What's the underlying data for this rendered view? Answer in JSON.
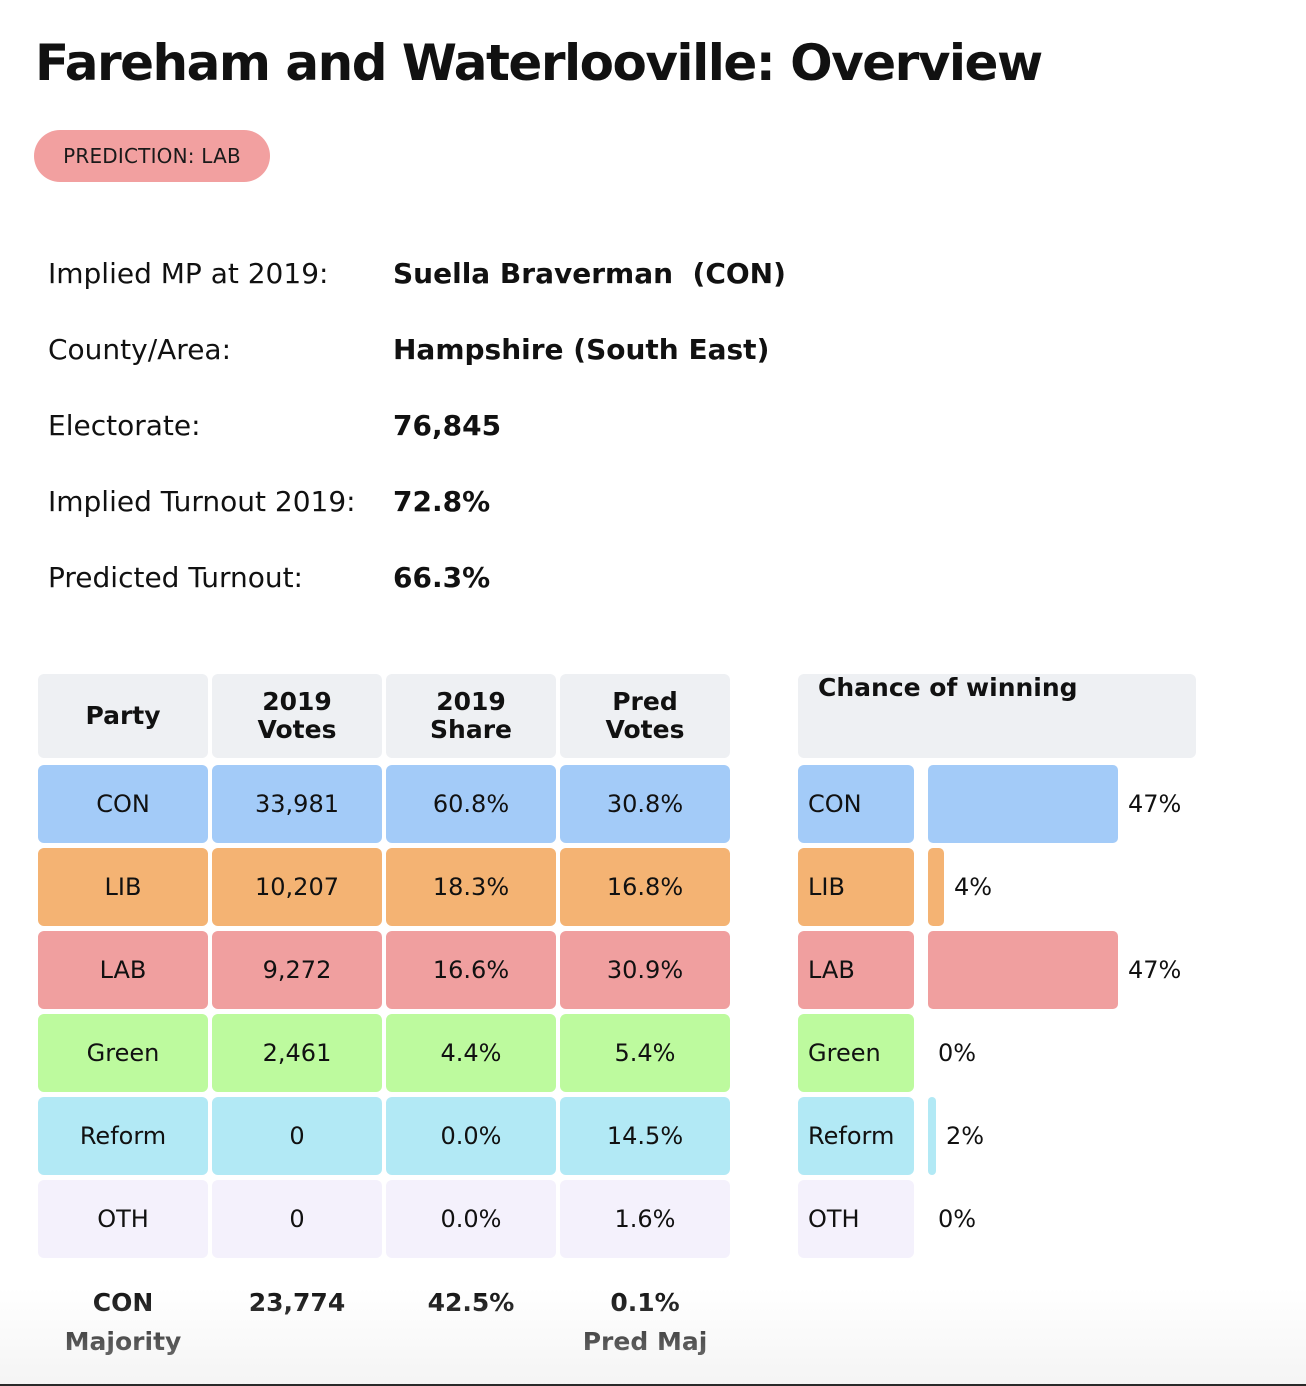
{
  "title": "Fareham and Waterlooville: Overview",
  "prediction_badge": "PREDICTION: LAB",
  "info": [
    {
      "label": "Implied MP at 2019:",
      "value": "Suella Braverman  (CON)"
    },
    {
      "label": "County/Area:",
      "value": "Hampshire (South East)"
    },
    {
      "label": "Electorate:",
      "value": "76,845"
    },
    {
      "label": "Implied Turnout 2019:",
      "value": "72.8%"
    },
    {
      "label": "Predicted Turnout:",
      "value": "66.3%"
    }
  ],
  "results_table": {
    "headers": [
      "Party",
      "2019 Votes",
      "2019 Share",
      "Pred Votes"
    ],
    "rows": [
      {
        "party": "CON",
        "votes_2019": "33,981",
        "share_2019": "60.8%",
        "pred_votes": "30.8%",
        "color": "#a3cbf8"
      },
      {
        "party": "LIB",
        "votes_2019": "10,207",
        "share_2019": "18.3%",
        "pred_votes": "16.8%",
        "color": "#f4b373"
      },
      {
        "party": "LAB",
        "votes_2019": "9,272",
        "share_2019": "16.6%",
        "pred_votes": "30.9%",
        "color": "#f09f9f"
      },
      {
        "party": "Green",
        "votes_2019": "2,461",
        "share_2019": "4.4%",
        "pred_votes": "5.4%",
        "color": "#bdfa9e"
      },
      {
        "party": "Reform",
        "votes_2019": "0",
        "share_2019": "0.0%",
        "pred_votes": "14.5%",
        "color": "#b2e9f5"
      },
      {
        "party": "OTH",
        "votes_2019": "0",
        "share_2019": "0.0%",
        "pred_votes": "1.6%",
        "color": "#f4f1fc"
      }
    ],
    "footer": {
      "majority_party": "CON",
      "majority_label": "Majority",
      "majority_votes": "23,774",
      "majority_share": "42.5%",
      "pred_majority": "0.1%",
      "pred_majority_label": "Pred Maj"
    }
  },
  "chance_of_winning": {
    "header": "Chance of winning",
    "rows": [
      {
        "party": "CON",
        "percent": 47,
        "label": "47%",
        "color": "#a3cbf8"
      },
      {
        "party": "LIB",
        "percent": 4,
        "label": "4%",
        "color": "#f4b373"
      },
      {
        "party": "LAB",
        "percent": 47,
        "label": "47%",
        "color": "#f09f9f"
      },
      {
        "party": "Green",
        "percent": 0,
        "label": "0%",
        "color": "#bdfa9e"
      },
      {
        "party": "Reform",
        "percent": 2,
        "label": "2%",
        "color": "#b2e9f5"
      },
      {
        "party": "OTH",
        "percent": 0,
        "label": "0%",
        "color": "#f4f1fc"
      }
    ]
  }
}
